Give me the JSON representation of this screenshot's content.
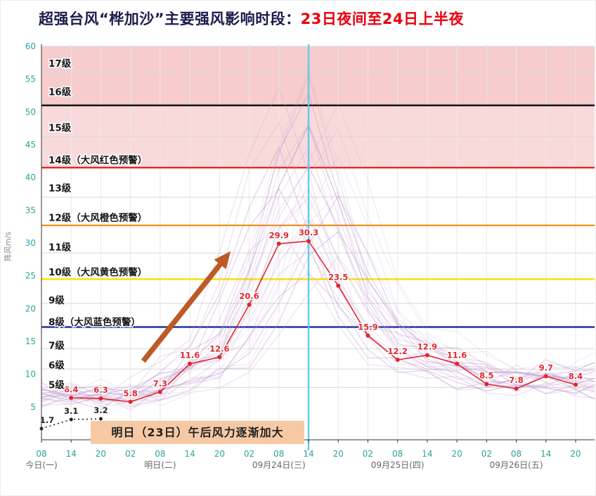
{
  "title": {
    "main": "超强台风“桦加沙”主要强风影响时段：",
    "highlight": "23日夜间至24日上半夜"
  },
  "y_axis_title": "阵风m/s",
  "annotation": {
    "text": "明日（23日）午后风力逐渐加大",
    "bg": "#f6c9a4"
  },
  "colors": {
    "title": "#1b1b4d",
    "title_highlight": "#e8000d",
    "forecast": "#e0262e",
    "observed": "#222222",
    "ensemble_a": "#b88fc9",
    "ensemble_b": "#c9a6d6",
    "tick": "#2ba39b",
    "date": "#666666",
    "grid": "#d8d8d8",
    "vgrid": "#e9e9e9",
    "axis": "#333333",
    "now_line": "#56c8f0",
    "arrow": "#bd5a26"
  },
  "chart_data": {
    "type": "line",
    "x_ticks": [
      "08",
      "14",
      "20",
      "02",
      "08",
      "14",
      "20",
      "02",
      "08",
      "14",
      "20",
      "02",
      "08",
      "14",
      "20",
      "02",
      "08",
      "14",
      "20"
    ],
    "date_labels": [
      {
        "label": "今日(一)",
        "tick": 0
      },
      {
        "label": "明日(二)",
        "tick": 4
      },
      {
        "label": "09月24日(三)",
        "tick": 8
      },
      {
        "label": "09月25日(四)",
        "tick": 12
      },
      {
        "label": "09月26日(五)",
        "tick": 16
      }
    ],
    "y_ticks": [
      60,
      55,
      50,
      45,
      40,
      35,
      30,
      25,
      20,
      15,
      10,
      5
    ],
    "ylim": [
      0,
      60
    ],
    "series": [
      {
        "name": "阵风预报",
        "color": "#e0262e",
        "start_tick": 1,
        "dotted": false,
        "values": [
          6.4,
          6.3,
          5.8,
          7.3,
          11.6,
          12.6,
          20.6,
          29.9,
          30.3,
          23.5,
          15.9,
          12.2,
          12.9,
          11.6,
          8.5,
          7.8,
          9.7,
          8.4
        ]
      },
      {
        "name": "实况阵风",
        "color": "#222222",
        "start_tick": 0,
        "dotted": true,
        "values": [
          1.7,
          3.1,
          3.2
        ]
      }
    ],
    "peak_time_tick": 9,
    "wind_levels": [
      {
        "label": "5级",
        "v": 8.3
      },
      {
        "label": "6级",
        "v": 11.3
      },
      {
        "label": "7级",
        "v": 14.3
      },
      {
        "label": "8级（大风蓝色预警）",
        "v": 17.9
      },
      {
        "label": "9级",
        "v": 21.2
      },
      {
        "label": "10级（大风黄色预警）",
        "v": 25.5
      },
      {
        "label": "11级",
        "v": 29.3
      },
      {
        "label": "12级（大风橙色预警）",
        "v": 33.8
      },
      {
        "label": "13级",
        "v": 38.3
      },
      {
        "label": "14级（大风红色预警）",
        "v": 42.6
      },
      {
        "label": "15级",
        "v": 47.5
      },
      {
        "label": "16级",
        "v": 53.0
      },
      {
        "label": "17级",
        "v": 57.3
      }
    ],
    "warning_lines": [
      {
        "v": 51.0,
        "color": "#111111",
        "w": 2.5
      },
      {
        "v": 41.5,
        "color": "#e60000",
        "w": 2
      },
      {
        "v": 32.7,
        "color": "#f08300",
        "w": 2
      },
      {
        "v": 24.5,
        "color": "#ffe100",
        "w": 2.5
      },
      {
        "v": 17.2,
        "color": "#22339e",
        "w": 2.5
      }
    ],
    "grid_values": [
      8.0,
      10.8,
      13.9,
      20.8,
      28.5,
      37.0,
      46.2,
      56.0,
      60.0
    ],
    "bands": [
      {
        "from": 51.0,
        "to": 60.0,
        "color": "#f6cccc"
      },
      {
        "from": 41.5,
        "to": 51.0,
        "color": "#f9dada"
      }
    ],
    "ensemble_members": [
      [
        57,
        9
      ],
      [
        55,
        9
      ],
      [
        54,
        8
      ],
      [
        52,
        9
      ],
      [
        51,
        10
      ],
      [
        50,
        9
      ],
      [
        49,
        8
      ],
      [
        48,
        9
      ],
      [
        47,
        10
      ],
      [
        46,
        9
      ],
      [
        45,
        9
      ],
      [
        44,
        8
      ],
      [
        43,
        10
      ],
      [
        42,
        9
      ],
      [
        41,
        9
      ],
      [
        40,
        8
      ],
      [
        39,
        10
      ],
      [
        38,
        9
      ],
      [
        37,
        9
      ],
      [
        36,
        10
      ],
      [
        35,
        9
      ],
      [
        34,
        8
      ],
      [
        33,
        9
      ],
      [
        32,
        10
      ],
      [
        31,
        9
      ],
      [
        30,
        9
      ],
      [
        28,
        10
      ],
      [
        26,
        9
      ]
    ],
    "arrow": {
      "tick1": 3.43,
      "v1": 12.0,
      "tick2": 6.25,
      "v2": 28.1
    }
  }
}
